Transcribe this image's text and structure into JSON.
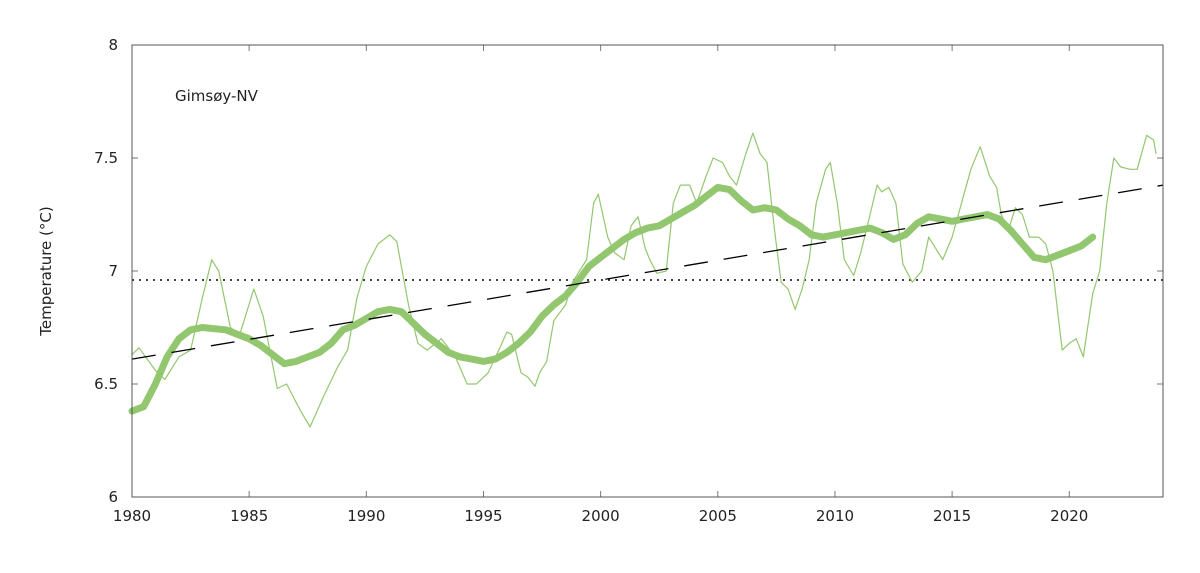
{
  "chart_data": {
    "type": "line",
    "title": "",
    "annotation": "Gimsøy-NV",
    "xlabel": "",
    "ylabel": "Temperature (°C)",
    "xlim": [
      1980,
      2024
    ],
    "ylim": [
      6,
      8
    ],
    "xticks": [
      "1980",
      "1985",
      "1990",
      "1995",
      "2000",
      "2005",
      "2010",
      "2015",
      "2020"
    ],
    "yticks": [
      "6",
      "6.5",
      "7",
      "7.5",
      "8"
    ],
    "grid": false,
    "colors": {
      "series": "#93c76f",
      "trend": "#000000",
      "mean": "#000000",
      "frame": "#555555"
    },
    "series": [
      {
        "style": "thin",
        "x": [
          1980.0,
          1980.3,
          1981.0,
          1981.4,
          1982.0,
          1982.5,
          1983.0,
          1983.4,
          1983.7,
          1984.2,
          1984.6,
          1985.2,
          1985.6,
          1986.2,
          1986.6,
          1987.2,
          1987.6,
          1988.2,
          1988.8,
          1989.2,
          1989.6,
          1990.0,
          1990.5,
          1991.0,
          1991.3,
          1991.8,
          1992.2,
          1992.6,
          1993.2,
          1993.8,
          1994.3,
          1994.7,
          1995.2,
          1995.7,
          1996.0,
          1996.2,
          1996.6,
          1996.9,
          1997.2,
          1997.4,
          1997.7,
          1998.0,
          1998.5,
          1998.8,
          1999.1,
          1999.4,
          1999.7,
          1999.9,
          2000.3,
          2000.6,
          2001.0,
          2001.3,
          2001.6,
          2001.9,
          2002.1,
          2002.4,
          2002.8,
          2003.1,
          2003.4,
          2003.8,
          2004.1,
          2004.5,
          2004.8,
          2005.2,
          2005.5,
          2005.8,
          2006.2,
          2006.5,
          2006.8,
          2007.1,
          2007.4,
          2007.7,
          2008.0,
          2008.3,
          2008.6,
          2008.9,
          2009.2,
          2009.6,
          2009.8,
          2010.1,
          2010.4,
          2010.8,
          2011.1,
          2011.5,
          2011.8,
          2012.0,
          2012.3,
          2012.6,
          2012.9,
          2013.3,
          2013.7,
          2014.0,
          2014.3,
          2014.6,
          2015.0,
          2015.4,
          2015.8,
          2016.2,
          2016.6,
          2016.9,
          2017.1,
          2017.4,
          2017.7,
          2018.0,
          2018.3,
          2018.7,
          2019.0,
          2019.3,
          2019.7,
          2020.0,
          2020.3,
          2020.6,
          2021.0,
          2021.3,
          2021.6,
          2021.9,
          2022.2,
          2022.6,
          2022.9,
          2023.3,
          2023.6,
          2023.7
        ],
        "y": [
          6.63,
          6.66,
          6.56,
          6.52,
          6.62,
          6.65,
          6.88,
          7.05,
          7.0,
          6.75,
          6.72,
          6.92,
          6.8,
          6.48,
          6.5,
          6.38,
          6.31,
          6.45,
          6.58,
          6.65,
          6.88,
          7.02,
          7.12,
          7.16,
          7.13,
          6.85,
          6.68,
          6.65,
          6.7,
          6.62,
          6.5,
          6.5,
          6.55,
          6.66,
          6.73,
          6.72,
          6.55,
          6.53,
          6.49,
          6.55,
          6.6,
          6.78,
          6.85,
          6.95,
          7.0,
          7.05,
          7.3,
          7.34,
          7.15,
          7.08,
          7.05,
          7.2,
          7.24,
          7.1,
          7.05,
          6.99,
          7.0,
          7.3,
          7.38,
          7.38,
          7.3,
          7.42,
          7.5,
          7.48,
          7.42,
          7.38,
          7.52,
          7.61,
          7.52,
          7.48,
          7.2,
          6.95,
          6.92,
          6.83,
          6.92,
          7.05,
          7.3,
          7.45,
          7.48,
          7.3,
          7.05,
          6.98,
          7.08,
          7.25,
          7.38,
          7.35,
          7.37,
          7.3,
          7.03,
          6.95,
          7.0,
          7.15,
          7.1,
          7.05,
          7.15,
          7.3,
          7.45,
          7.55,
          7.42,
          7.37,
          7.25,
          7.18,
          7.28,
          7.25,
          7.15,
          7.15,
          7.12,
          7.0,
          6.65,
          6.68,
          6.7,
          6.62,
          6.9,
          7.0,
          7.3,
          7.5,
          7.46,
          7.45,
          7.45,
          7.6,
          7.58,
          7.52
        ]
      },
      {
        "style": "smoothed",
        "x": [
          1980,
          1980.5,
          1981,
          1981.5,
          1982,
          1982.5,
          1983,
          1984,
          1984.5,
          1985,
          1985.5,
          1986,
          1986.5,
          1987,
          1987.5,
          1988,
          1988.5,
          1989,
          1989.5,
          1990,
          1990.5,
          1991,
          1991.5,
          1992,
          1992.5,
          1993,
          1993.5,
          1994,
          1994.5,
          1995,
          1995.5,
          1996,
          1996.5,
          1997,
          1997.5,
          1998,
          1998.5,
          1999,
          1999.5,
          2000,
          2000.5,
          2001,
          2001.5,
          2002,
          2002.5,
          2003,
          2003.5,
          2004,
          2004.5,
          2005,
          2005.5,
          2006,
          2006.5,
          2007,
          2007.5,
          2008,
          2008.5,
          2009,
          2009.5,
          2010,
          2010.5,
          2011,
          2011.5,
          2012,
          2012.5,
          2013,
          2013.5,
          2014,
          2014.5,
          2015,
          2015.5,
          2016,
          2016.5,
          2017,
          2017.5,
          2018,
          2018.5,
          2019,
          2019.5,
          2020,
          2020.5,
          2021
        ],
        "y": [
          6.38,
          6.4,
          6.5,
          6.62,
          6.7,
          6.74,
          6.75,
          6.74,
          6.72,
          6.7,
          6.67,
          6.63,
          6.59,
          6.6,
          6.62,
          6.64,
          6.68,
          6.74,
          6.76,
          6.79,
          6.82,
          6.83,
          6.82,
          6.77,
          6.72,
          6.68,
          6.64,
          6.62,
          6.61,
          6.6,
          6.61,
          6.64,
          6.68,
          6.73,
          6.8,
          6.85,
          6.89,
          6.95,
          7.02,
          7.06,
          7.1,
          7.14,
          7.17,
          7.19,
          7.2,
          7.23,
          7.26,
          7.29,
          7.33,
          7.37,
          7.36,
          7.31,
          7.27,
          7.28,
          7.27,
          7.23,
          7.2,
          7.16,
          7.15,
          7.16,
          7.17,
          7.18,
          7.19,
          7.17,
          7.14,
          7.16,
          7.21,
          7.24,
          7.23,
          7.22,
          7.23,
          7.24,
          7.25,
          7.23,
          7.18,
          7.12,
          7.06,
          7.05,
          7.07,
          7.09,
          7.11,
          7.15
        ]
      }
    ],
    "trend_line": {
      "x": [
        1980,
        2024
      ],
      "y": [
        6.61,
        7.38
      ],
      "style": "dashed"
    },
    "mean_line": {
      "y": 6.96,
      "style": "dotted"
    }
  }
}
